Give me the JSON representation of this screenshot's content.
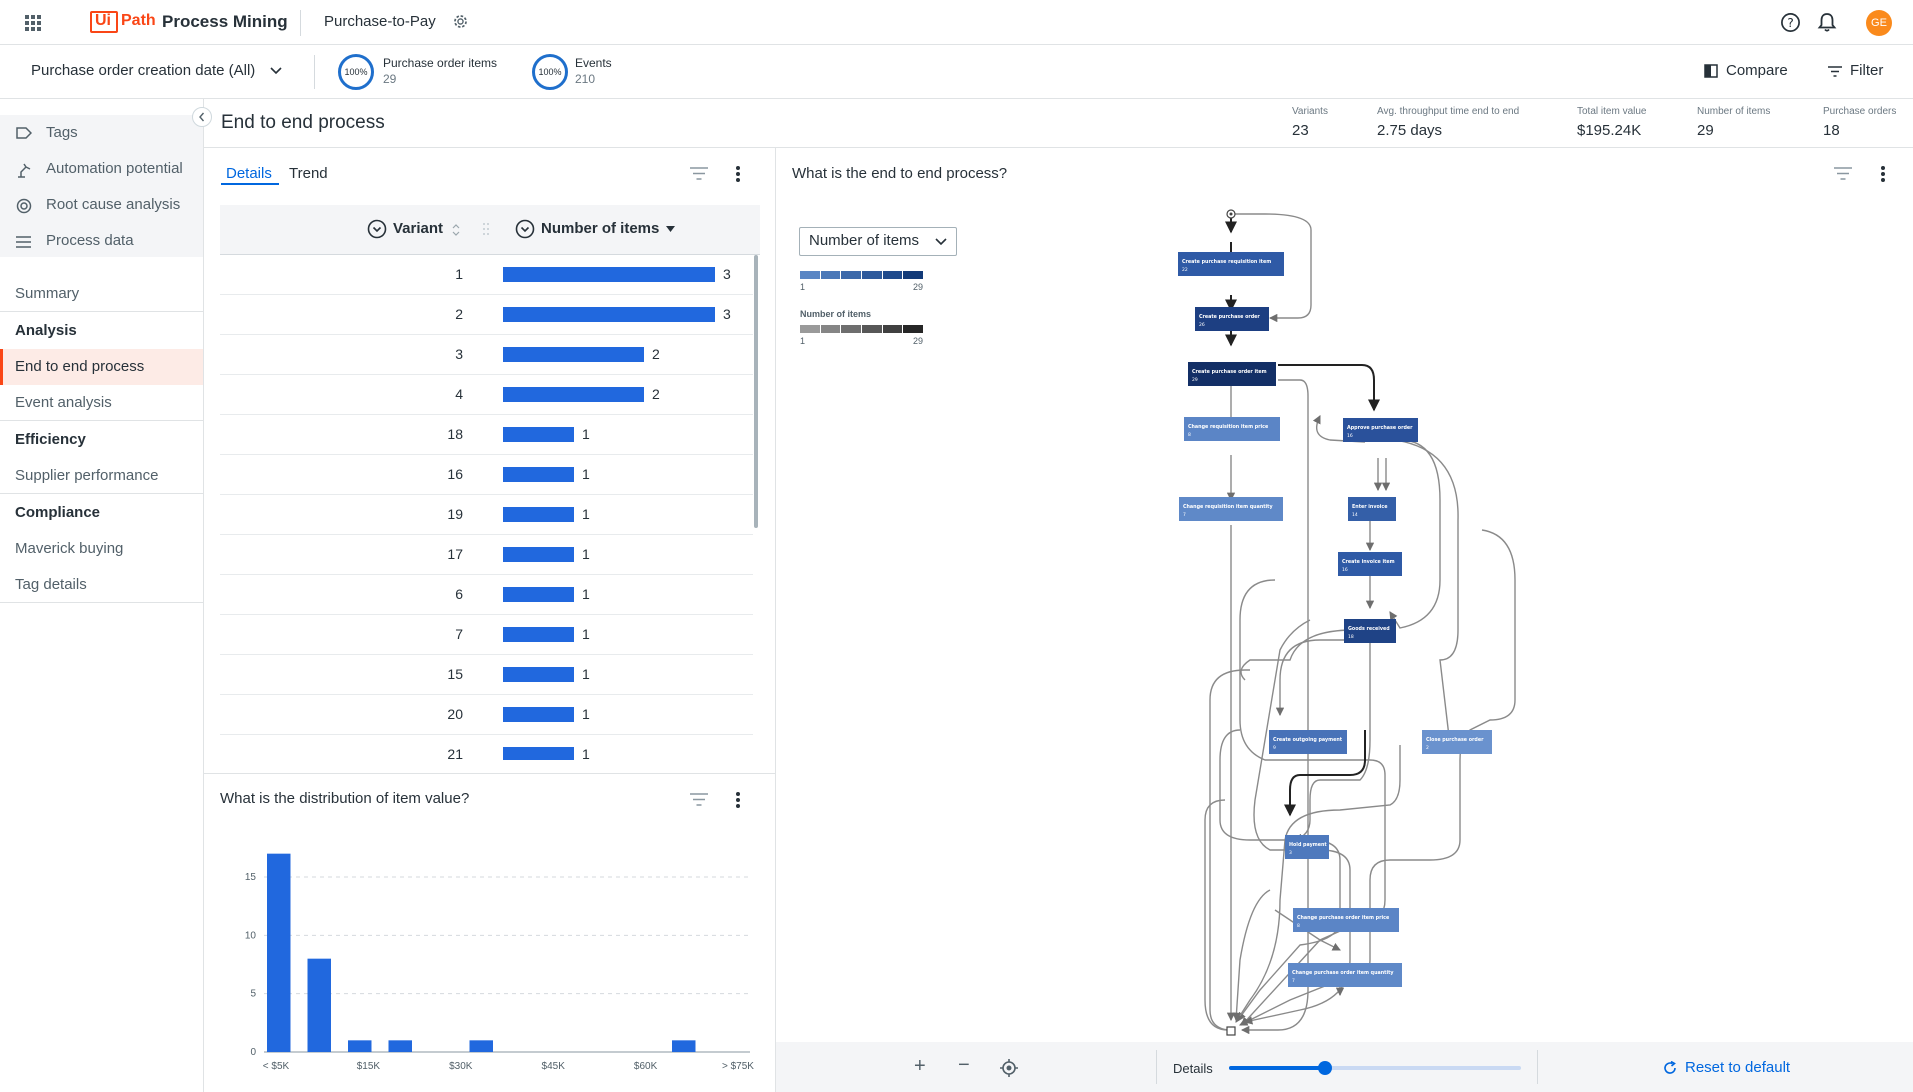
{
  "header": {
    "logo_ui": "Ui",
    "logo_path": "Path",
    "brand": "Process Mining",
    "app_name": "Purchase-to-Pay",
    "avatar": "GE",
    "icons": [
      "apps-grid-icon",
      "gear-icon",
      "help-icon",
      "bell-icon"
    ]
  },
  "filterbar": {
    "date_filter": "Purchase order creation date (All)",
    "kpis": [
      {
        "percent": "100%",
        "label": "Purchase order items",
        "value": "29"
      },
      {
        "percent": "100%",
        "label": "Events",
        "value": "210"
      }
    ],
    "compare_label": "Compare",
    "filter_label": "Filter"
  },
  "sidebar": {
    "tools": [
      {
        "label": "Tags",
        "icon": "tag-icon"
      },
      {
        "label": "Automation potential",
        "icon": "robot-arm-icon"
      },
      {
        "label": "Root cause analysis",
        "icon": "target-icon"
      },
      {
        "label": "Process data",
        "icon": "list-icon"
      }
    ],
    "summary": "Summary",
    "groups": [
      {
        "title": "Analysis",
        "items": [
          "End to end process",
          "Event analysis"
        ]
      },
      {
        "title": "Efficiency",
        "items": [
          "Supplier performance"
        ]
      },
      {
        "title": "Compliance",
        "items": [
          "Maverick buying",
          "Tag details"
        ]
      }
    ],
    "active_item": "End to end process"
  },
  "page": {
    "title": "End to end process",
    "stats": [
      {
        "label": "Variants",
        "value": "23"
      },
      {
        "label": "Avg. throughput time end to end",
        "value": "2.75 days"
      },
      {
        "label": "Total item value",
        "value": "$195.24K"
      },
      {
        "label": "Number of items",
        "value": "29"
      },
      {
        "label": "Purchase orders",
        "value": "18"
      }
    ]
  },
  "variants_panel": {
    "tabs": [
      "Details",
      "Trend"
    ],
    "active_tab": "Details",
    "columns": [
      "Variant",
      "Number of items"
    ],
    "max_items": 3,
    "rows": [
      {
        "variant": "1",
        "items": 3
      },
      {
        "variant": "2",
        "items": 3
      },
      {
        "variant": "3",
        "items": 2
      },
      {
        "variant": "4",
        "items": 2
      },
      {
        "variant": "18",
        "items": 1
      },
      {
        "variant": "16",
        "items": 1
      },
      {
        "variant": "19",
        "items": 1
      },
      {
        "variant": "17",
        "items": 1
      },
      {
        "variant": "6",
        "items": 1
      },
      {
        "variant": "7",
        "items": 1
      },
      {
        "variant": "15",
        "items": 1
      },
      {
        "variant": "20",
        "items": 1
      },
      {
        "variant": "21",
        "items": 1
      }
    ]
  },
  "distribution_panel": {
    "title": "What is the distribution of item value?",
    "chart_data": {
      "type": "bar",
      "categories": [
        "< $5K",
        "",
        "",
        "$15K",
        "",
        "$30K",
        "",
        "$45K",
        "",
        "$60K",
        "",
        "> $75K"
      ],
      "x_tick_labels": [
        "< $5K",
        "$15K",
        "$30K",
        "$45K",
        "$60K",
        "> $75K"
      ],
      "values": [
        17,
        8,
        1,
        1,
        0,
        1,
        0,
        0,
        0,
        0,
        1,
        0
      ],
      "y_ticks": [
        "0",
        "5",
        "10",
        "15"
      ],
      "ylim": [
        0,
        18
      ],
      "grid": true,
      "color": "#2168de"
    }
  },
  "process_panel": {
    "title": "What is the end to end process?",
    "metric_select": "Number of items",
    "legend": {
      "node_min": "1",
      "node_max": "29",
      "edge_title": "Number of items",
      "edge_min": "1",
      "edge_max": "29"
    },
    "nodes": [
      {
        "id": "crq",
        "label": "Create purchase requisition item",
        "count": "22"
      },
      {
        "id": "cpo",
        "label": "Create purchase order",
        "count": "26"
      },
      {
        "id": "cpi",
        "label": "Create purchase order item",
        "count": "29"
      },
      {
        "id": "crp",
        "label": "Change requisition item price",
        "count": "8"
      },
      {
        "id": "apo",
        "label": "Approve purchase order",
        "count": "16"
      },
      {
        "id": "crq2",
        "label": "Change requisition item quantity",
        "count": "7"
      },
      {
        "id": "ein",
        "label": "Enter invoice",
        "count": "14"
      },
      {
        "id": "cii",
        "label": "Create invoice item",
        "count": "16"
      },
      {
        "id": "grc",
        "label": "Goods received",
        "count": "18"
      },
      {
        "id": "cop",
        "label": "Create outgoing payment",
        "count": "9"
      },
      {
        "id": "clo",
        "label": "Close purchase order",
        "count": "2"
      },
      {
        "id": "hpm",
        "label": "Hold payment",
        "count": "3"
      },
      {
        "id": "cpp",
        "label": "Change purchase order item price",
        "count": "8"
      },
      {
        "id": "cpq",
        "label": "Change purchase order item quantity",
        "count": "7"
      }
    ],
    "details_label": "Details",
    "details_level": 0.33,
    "reset_label": "Reset to default"
  }
}
